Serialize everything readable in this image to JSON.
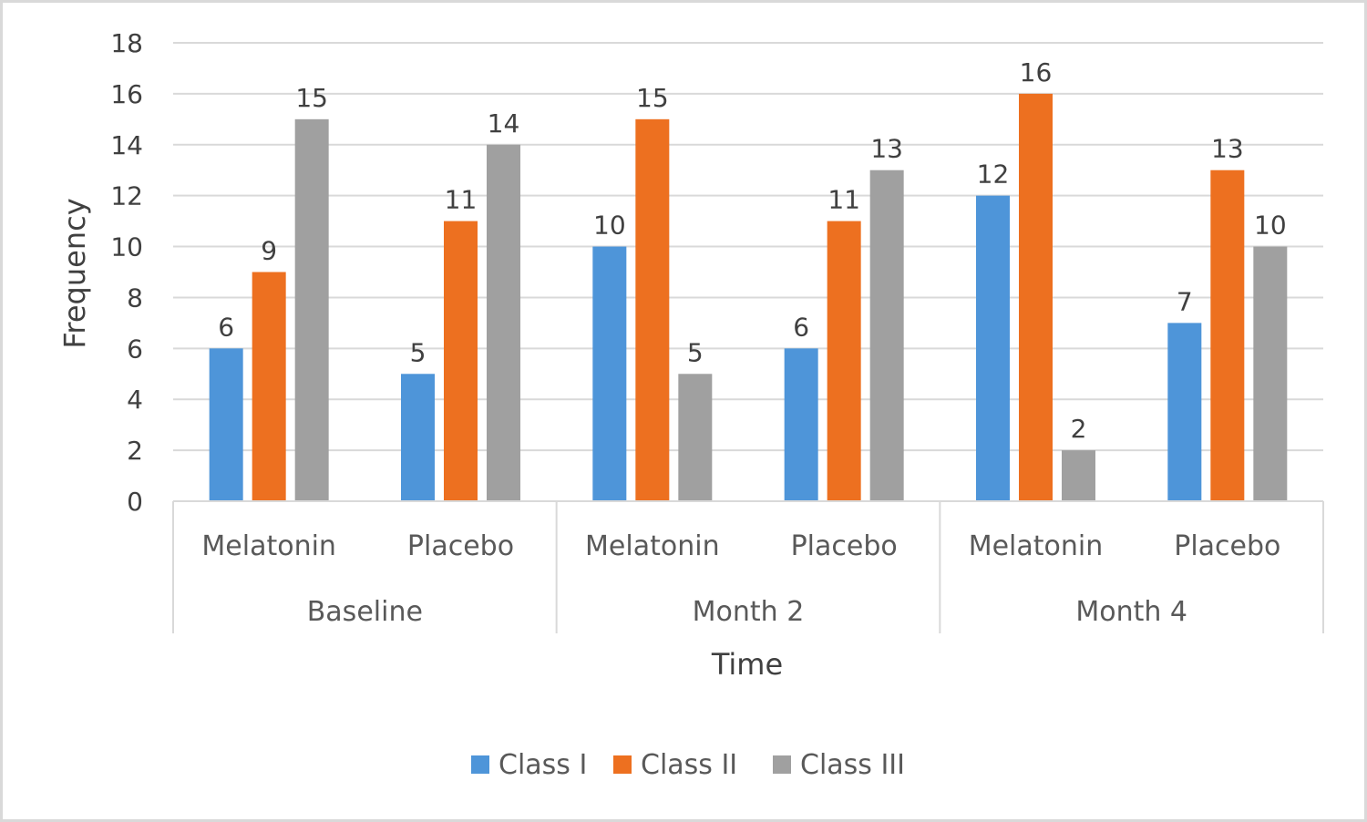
{
  "chart_data": {
    "type": "bar",
    "title": "",
    "xlabel": "Time",
    "ylabel": "Frequency",
    "ylim": [
      0,
      18
    ],
    "yticks": [
      0,
      2,
      4,
      6,
      8,
      10,
      12,
      14,
      16,
      18
    ],
    "grid": true,
    "legend_position": "bottom",
    "groups": [
      {
        "label": "Baseline",
        "categories": [
          "Melatonin",
          "Placebo"
        ]
      },
      {
        "label": "Month 2",
        "categories": [
          "Melatonin",
          "Placebo"
        ]
      },
      {
        "label": "Month 4",
        "categories": [
          "Melatonin",
          "Placebo"
        ]
      }
    ],
    "categories": [
      "Melatonin",
      "Placebo",
      "Melatonin",
      "Placebo",
      "Melatonin",
      "Placebo"
    ],
    "series": [
      {
        "name": "Class I",
        "color": "#4e95d9",
        "values": [
          6,
          5,
          10,
          6,
          12,
          7
        ]
      },
      {
        "name": "Class II",
        "color": "#ed7020",
        "values": [
          9,
          11,
          15,
          11,
          16,
          13
        ]
      },
      {
        "name": "Class III",
        "color": "#a0a0a0",
        "values": [
          15,
          14,
          5,
          13,
          2,
          10
        ]
      }
    ]
  }
}
